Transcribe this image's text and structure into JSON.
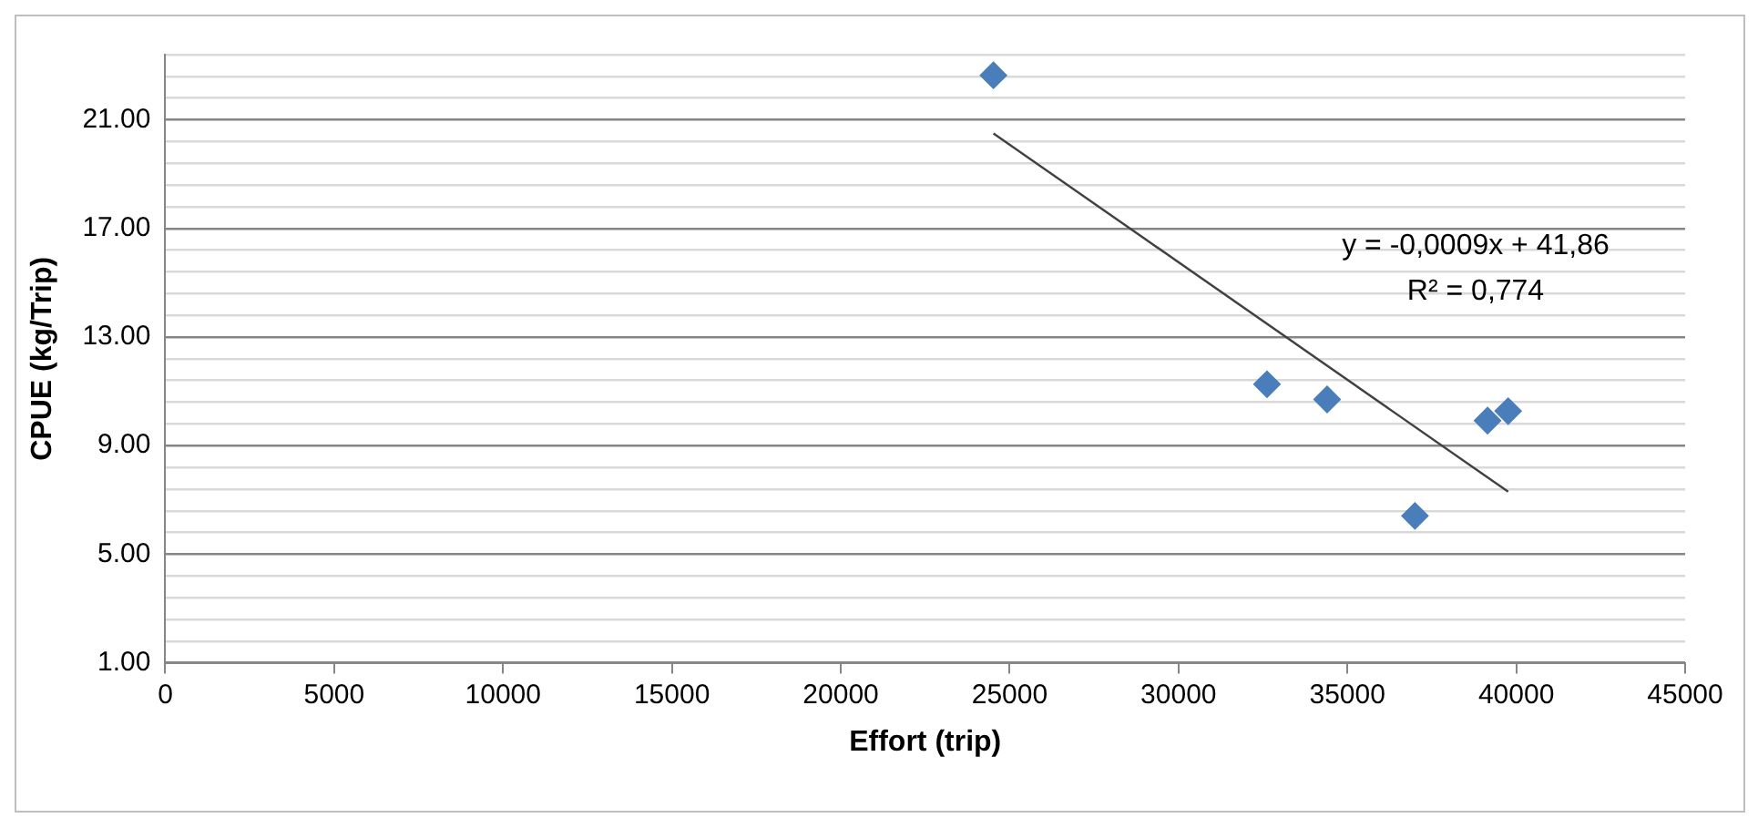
{
  "chart_data": {
    "type": "scatter",
    "xlabel": "Effort (trip)",
    "ylabel": "CPUE (kg/Trip)",
    "series": [
      {
        "color": "#4a7ebb",
        "x": [
          24520,
          32620,
          34400,
          37000,
          39150,
          39760
        ],
        "values": [
          22.64,
          11.26,
          10.7,
          6.41,
          9.92,
          10.27
        ]
      },
      {
        "type": "line",
        "color": "#404040",
        "x": [
          24520,
          39760
        ],
        "values": [
          20.5,
          7.3
        ],
        "marker": "none"
      }
    ],
    "marker": "diamond",
    "xlim": [
      0,
      45000
    ],
    "xticks": [
      0,
      5000,
      10000,
      15000,
      20000,
      25000,
      30000,
      35000,
      40000,
      45000
    ],
    "ylim": [
      1,
      23.4
    ],
    "yticks": [
      {
        "value": 1,
        "label": "1.00"
      },
      {
        "value": 1.8,
        "label": null
      },
      {
        "value": 2.6,
        "label": null
      },
      {
        "value": 3.4,
        "label": null
      },
      {
        "value": 4.2,
        "label": null
      },
      {
        "value": 5,
        "label": "5.00"
      },
      {
        "value": 5.8,
        "label": null
      },
      {
        "value": 6.6,
        "label": null
      },
      {
        "value": 7.4,
        "label": null
      },
      {
        "value": 8.2,
        "label": null
      },
      {
        "value": 9,
        "label": "9.00"
      },
      {
        "value": 9.8,
        "label": null
      },
      {
        "value": 10.6,
        "label": null
      },
      {
        "value": 11.4,
        "label": null
      },
      {
        "value": 12.2,
        "label": null
      },
      {
        "value": 13,
        "label": "13.00"
      },
      {
        "value": 13.8,
        "label": null
      },
      {
        "value": 14.6,
        "label": null
      },
      {
        "value": 15.4,
        "label": null
      },
      {
        "value": 16.2,
        "label": null
      },
      {
        "value": 17,
        "label": "17.00"
      },
      {
        "value": 17.8,
        "label": null
      },
      {
        "value": 18.6,
        "label": null
      },
      {
        "value": 19.4,
        "label": null
      },
      {
        "value": 20.2,
        "label": null
      },
      {
        "value": 21,
        "label": "21.00"
      },
      {
        "value": 21.8,
        "label": null
      },
      {
        "value": 22.6,
        "label": null
      },
      {
        "value": 23.4,
        "label": null
      }
    ],
    "grid": "y",
    "legend": false,
    "annotations": [
      "y = -0,0009x + 41,86",
      "R² = 0,774"
    ]
  }
}
